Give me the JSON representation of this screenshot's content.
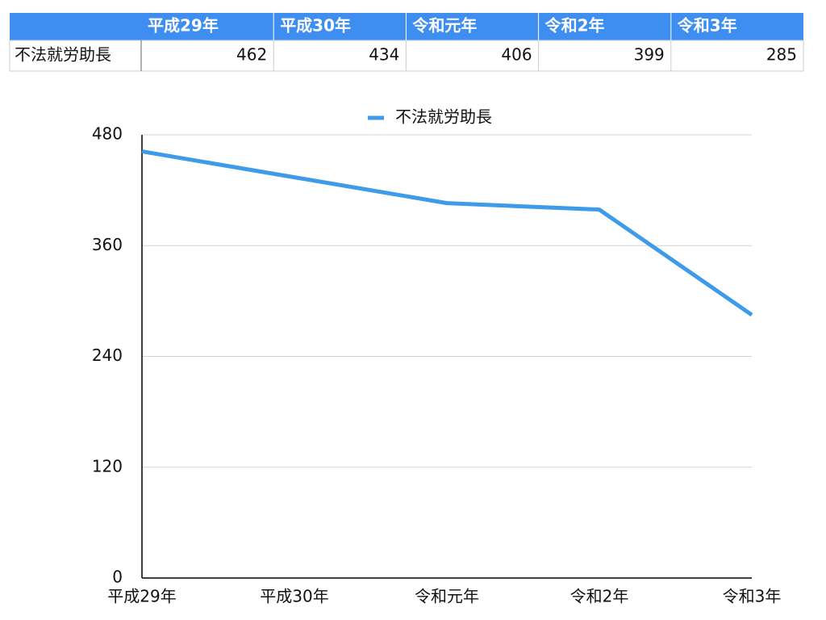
{
  "chart_data": {
    "type": "line",
    "categories": [
      "平成29年",
      "平成30年",
      "令和元年",
      "令和2年",
      "令和3年"
    ],
    "series": [
      {
        "name": "不法就労助長",
        "color": "#3d9be9",
        "values": [
          462,
          434,
          406,
          399,
          285
        ]
      }
    ],
    "ylim": [
      0,
      480
    ],
    "yticks": [
      0,
      120,
      240,
      360,
      480
    ],
    "grid": true,
    "legend": "top"
  }
}
